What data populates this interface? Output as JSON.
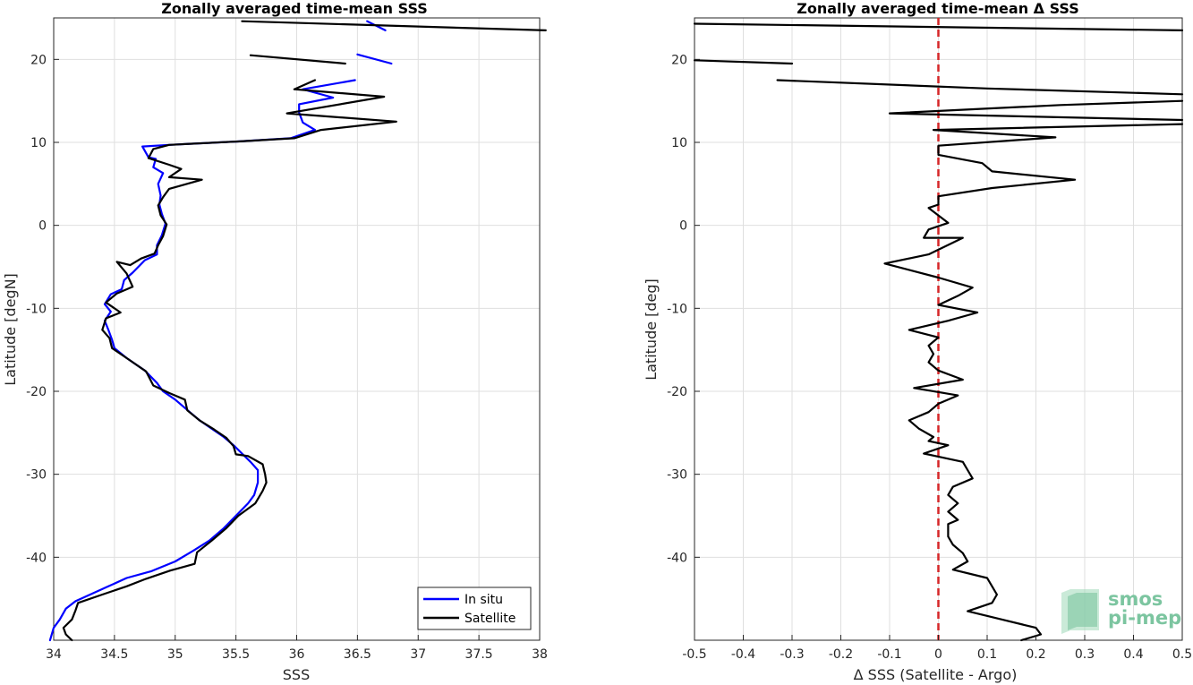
{
  "chart_data": [
    {
      "type": "line",
      "title": "Zonally averaged time-mean SSS",
      "xlabel": "SSS",
      "ylabel": "Latitude [degN]",
      "xlim": [
        34,
        38
      ],
      "ylim": [
        -50,
        25
      ],
      "xticks": [
        "34",
        "34.5",
        "35",
        "35.5",
        "36",
        "36.5",
        "37",
        "37.5",
        "38"
      ],
      "yticks": [
        "20",
        "10",
        "0",
        "-10",
        "-20",
        "-30",
        "-40"
      ],
      "grid": true,
      "legend": "bottom-right",
      "series": [
        {
          "name": "In situ",
          "color": "#0000ff",
          "segments": [
            [
              [
                36.73,
                23.5
              ],
              [
                36.58,
                24.6
              ]
            ],
            [
              [
                36.78,
                19.5
              ],
              [
                36.5,
                20.6
              ]
            ],
            [
              [
                36.48,
                17.5
              ],
              [
                36.05,
                16.4
              ],
              [
                36.3,
                15.4
              ],
              [
                36.02,
                14.6
              ],
              [
                36.02,
                13.6
              ],
              [
                36.05,
                12.4
              ],
              [
                36.15,
                11.5
              ],
              [
                35.95,
                10.5
              ],
              [
                35.5,
                10.1
              ],
              [
                34.95,
                9.7
              ],
              [
                34.73,
                9.5
              ],
              [
                34.78,
                8.2
              ],
              [
                34.84,
                8.0
              ],
              [
                34.82,
                7.0
              ],
              [
                34.9,
                6.3
              ],
              [
                34.86,
                5.0
              ],
              [
                34.88,
                3.6
              ],
              [
                34.87,
                2.5
              ],
              [
                34.89,
                1.4
              ],
              [
                34.92,
                0.2
              ],
              [
                34.89,
                -1.2
              ],
              [
                34.85,
                -2.4
              ],
              [
                34.85,
                -3.5
              ],
              [
                34.75,
                -4.2
              ],
              [
                34.65,
                -5.7
              ],
              [
                34.58,
                -6.6
              ],
              [
                34.56,
                -7.7
              ],
              [
                34.47,
                -8.3
              ],
              [
                34.42,
                -9.5
              ],
              [
                34.47,
                -10.4
              ],
              [
                34.42,
                -11.5
              ],
              [
                34.45,
                -12.6
              ],
              [
                34.48,
                -13.8
              ],
              [
                34.5,
                -14.8
              ],
              [
                34.6,
                -16.0
              ],
              [
                34.75,
                -17.5
              ],
              [
                34.85,
                -19.0
              ],
              [
                34.9,
                -20.0
              ],
              [
                35.0,
                -21.0
              ],
              [
                35.12,
                -22.5
              ],
              [
                35.2,
                -23.5
              ],
              [
                35.3,
                -24.5
              ],
              [
                35.4,
                -25.5
              ],
              [
                35.48,
                -26.5
              ],
              [
                35.55,
                -27.5
              ],
              [
                35.62,
                -28.5
              ],
              [
                35.68,
                -29.5
              ],
              [
                35.68,
                -31.0
              ],
              [
                35.65,
                -32.5
              ],
              [
                35.6,
                -33.5
              ],
              [
                35.5,
                -35.0
              ],
              [
                35.4,
                -36.5
              ],
              [
                35.28,
                -38.0
              ],
              [
                35.15,
                -39.2
              ],
              [
                35.0,
                -40.5
              ],
              [
                34.8,
                -41.7
              ],
              [
                34.6,
                -42.5
              ],
              [
                34.45,
                -43.5
              ],
              [
                34.3,
                -44.5
              ],
              [
                34.18,
                -45.3
              ],
              [
                34.1,
                -46.2
              ],
              [
                34.05,
                -47.5
              ],
              [
                34.0,
                -48.5
              ],
              [
                33.97,
                -50.0
              ]
            ]
          ]
        },
        {
          "name": "Satellite",
          "color": "#000000",
          "segments": [
            [
              [
                38.05,
                23.5
              ],
              [
                35.55,
                24.6
              ]
            ],
            [
              [
                36.4,
                19.5
              ],
              [
                35.62,
                20.5
              ]
            ],
            [
              [
                36.15,
                17.5
              ],
              [
                35.98,
                16.4
              ],
              [
                36.72,
                15.5
              ],
              [
                35.92,
                13.5
              ],
              [
                36.82,
                12.5
              ],
              [
                36.2,
                11.5
              ],
              [
                35.98,
                10.5
              ],
              [
                35.5,
                10.1
              ],
              [
                34.95,
                9.7
              ],
              [
                34.82,
                9.2
              ],
              [
                34.78,
                8.1
              ],
              [
                34.95,
                7.3
              ],
              [
                35.05,
                6.8
              ],
              [
                34.95,
                5.8
              ],
              [
                35.22,
                5.5
              ],
              [
                34.95,
                4.4
              ],
              [
                34.9,
                3.4
              ],
              [
                34.86,
                2.4
              ],
              [
                34.88,
                1.2
              ],
              [
                34.93,
                0.1
              ],
              [
                34.9,
                -1.3
              ],
              [
                34.86,
                -2.4
              ],
              [
                34.83,
                -3.4
              ],
              [
                34.72,
                -4.0
              ],
              [
                34.63,
                -4.8
              ],
              [
                34.52,
                -4.4
              ],
              [
                34.6,
                -5.8
              ],
              [
                34.65,
                -7.4
              ],
              [
                34.52,
                -8.2
              ],
              [
                34.43,
                -9.3
              ],
              [
                34.55,
                -10.5
              ],
              [
                34.43,
                -11.2
              ],
              [
                34.4,
                -12.6
              ],
              [
                34.46,
                -13.6
              ],
              [
                34.48,
                -14.8
              ],
              [
                34.6,
                -16.0
              ],
              [
                34.76,
                -17.6
              ],
              [
                34.82,
                -19.3
              ],
              [
                34.95,
                -20.2
              ],
              [
                35.08,
                -21.0
              ],
              [
                35.1,
                -22.3
              ],
              [
                35.2,
                -23.5
              ],
              [
                35.32,
                -24.6
              ],
              [
                35.42,
                -25.6
              ],
              [
                35.48,
                -26.6
              ],
              [
                35.5,
                -27.6
              ],
              [
                35.6,
                -27.8
              ],
              [
                35.72,
                -28.8
              ],
              [
                35.74,
                -30.0
              ],
              [
                35.75,
                -31.0
              ],
              [
                35.72,
                -32.0
              ],
              [
                35.66,
                -33.5
              ],
              [
                35.52,
                -35.0
              ],
              [
                35.42,
                -36.5
              ],
              [
                35.3,
                -38.0
              ],
              [
                35.18,
                -39.4
              ],
              [
                35.16,
                -40.8
              ],
              [
                34.96,
                -41.6
              ],
              [
                34.76,
                -42.6
              ],
              [
                34.6,
                -43.5
              ],
              [
                34.4,
                -44.5
              ],
              [
                34.2,
                -45.5
              ],
              [
                34.18,
                -46.4
              ],
              [
                34.15,
                -47.5
              ],
              [
                34.08,
                -48.5
              ],
              [
                34.1,
                -49.3
              ],
              [
                34.15,
                -50.0
              ]
            ]
          ]
        }
      ]
    },
    {
      "type": "line",
      "title": "Zonally averaged time-mean Δ SSS",
      "xlabel": "Δ SSS (Satellite - Argo)",
      "ylabel": "Latitude [deg]",
      "xlim": [
        -0.5,
        0.5
      ],
      "ylim": [
        -50,
        25
      ],
      "xticks": [
        "-0.5",
        "-0.4",
        "-0.3",
        "-0.2",
        "-0.1",
        "0",
        "0.1",
        "0.2",
        "0.3",
        "0.4",
        "0.5"
      ],
      "yticks": [
        "20",
        "10",
        "0",
        "-10",
        "-20",
        "-30",
        "-40"
      ],
      "grid": true,
      "reference_line": {
        "x": 0,
        "color": "#d62728",
        "style": "dashed"
      },
      "series": [
        {
          "color": "#000000",
          "segments": [
            [
              [
                -0.5,
                24.3
              ],
              [
                0.5,
                23.5
              ]
            ],
            [
              [
                -0.5,
                19.9
              ],
              [
                -0.3,
                19.5
              ]
            ],
            [
              [
                -0.33,
                17.5
              ],
              [
                0.1,
                16.5
              ],
              [
                0.5,
                15.8
              ]
            ],
            [
              [
                0.5,
                15.0
              ],
              [
                0.25,
                14.5
              ],
              [
                -0.1,
                13.5
              ],
              [
                0.5,
                12.7
              ]
            ],
            [
              [
                0.5,
                12.2
              ],
              [
                -0.01,
                11.5
              ],
              [
                0.24,
                10.6
              ],
              [
                0.0,
                9.6
              ],
              [
                0.0,
                8.5
              ],
              [
                0.09,
                7.5
              ],
              [
                0.11,
                6.5
              ],
              [
                0.28,
                5.5
              ],
              [
                0.11,
                4.5
              ],
              [
                0.0,
                3.5
              ],
              [
                0.0,
                2.5
              ],
              [
                -0.02,
                2.1
              ],
              [
                0.02,
                0.3
              ],
              [
                -0.02,
                -0.5
              ],
              [
                -0.03,
                -1.5
              ],
              [
                0.05,
                -1.5
              ],
              [
                -0.02,
                -3.5
              ],
              [
                -0.11,
                -4.6
              ],
              [
                0.0,
                -6.3
              ],
              [
                0.07,
                -7.5
              ],
              [
                0.04,
                -8.5
              ],
              [
                0.0,
                -9.6
              ],
              [
                0.08,
                -10.5
              ],
              [
                0.02,
                -11.5
              ],
              [
                -0.06,
                -12.6
              ],
              [
                0.0,
                -13.5
              ],
              [
                -0.02,
                -14.5
              ],
              [
                -0.01,
                -15.5
              ],
              [
                -0.02,
                -16.5
              ],
              [
                0.0,
                -17.5
              ],
              [
                0.05,
                -18.6
              ],
              [
                -0.05,
                -19.6
              ],
              [
                0.04,
                -20.5
              ],
              [
                0.0,
                -21.5
              ],
              [
                -0.02,
                -22.5
              ],
              [
                -0.06,
                -23.5
              ],
              [
                -0.04,
                -24.5
              ],
              [
                -0.01,
                -25.5
              ],
              [
                -0.02,
                -26.0
              ],
              [
                0.02,
                -26.5
              ],
              [
                -0.03,
                -27.5
              ],
              [
                0.05,
                -28.5
              ],
              [
                0.06,
                -29.5
              ],
              [
                0.07,
                -30.5
              ],
              [
                0.03,
                -31.5
              ],
              [
                0.02,
                -32.5
              ],
              [
                0.04,
                -33.5
              ],
              [
                0.02,
                -34.5
              ],
              [
                0.04,
                -35.5
              ],
              [
                0.02,
                -36.0
              ],
              [
                0.02,
                -37.5
              ],
              [
                0.03,
                -38.5
              ],
              [
                0.05,
                -39.5
              ],
              [
                0.06,
                -40.5
              ],
              [
                0.03,
                -41.5
              ],
              [
                0.1,
                -42.5
              ],
              [
                0.11,
                -43.5
              ],
              [
                0.12,
                -44.5
              ],
              [
                0.11,
                -45.5
              ],
              [
                0.06,
                -46.5
              ],
              [
                0.13,
                -47.5
              ],
              [
                0.2,
                -48.5
              ],
              [
                0.21,
                -49.3
              ],
              [
                0.17,
                -50.0
              ]
            ]
          ]
        }
      ]
    }
  ],
  "logo": {
    "line1": "smos",
    "line2": "pi-mep"
  }
}
